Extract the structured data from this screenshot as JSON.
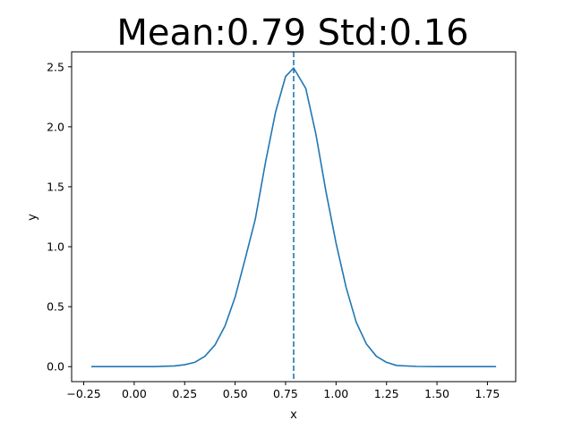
{
  "chart_data": {
    "type": "line",
    "title": "Mean:0.79 Std:0.16",
    "xlabel": "x",
    "ylabel": "y",
    "mean": 0.79,
    "std": 0.16,
    "x_range": [
      -0.21,
      1.79
    ],
    "xlim": [
      -0.31,
      1.89
    ],
    "ylim": [
      -0.125,
      2.625
    ],
    "xticks": [
      -0.25,
      0.0,
      0.25,
      0.5,
      0.75,
      1.0,
      1.25,
      1.5,
      1.75
    ],
    "xtick_labels": [
      "−0.25",
      "0.00",
      "0.25",
      "0.50",
      "0.75",
      "1.00",
      "1.25",
      "1.50",
      "1.75"
    ],
    "yticks": [
      0.0,
      0.5,
      1.0,
      1.5,
      2.0,
      2.5
    ],
    "ytick_labels": [
      "0.0",
      "0.5",
      "1.0",
      "1.5",
      "2.0",
      "2.5"
    ],
    "series": [
      {
        "x": [
          -0.21,
          -0.1,
          0.0,
          0.1,
          0.2,
          0.25,
          0.3,
          0.35,
          0.4,
          0.45,
          0.5,
          0.55,
          0.6,
          0.65,
          0.7,
          0.75,
          0.79,
          0.85,
          0.9,
          0.95,
          1.0,
          1.05,
          1.1,
          1.15,
          1.2,
          1.25,
          1.3,
          1.4,
          1.5,
          1.6,
          1.7,
          1.79
        ],
        "y": [
          0.0,
          0.0,
          0.0,
          0.0,
          0.006,
          0.016,
          0.036,
          0.086,
          0.18,
          0.34,
          0.58,
          0.9,
          1.23,
          1.7,
          2.12,
          2.42,
          2.49,
          2.32,
          1.94,
          1.46,
          1.03,
          0.66,
          0.37,
          0.19,
          0.086,
          0.036,
          0.0097,
          0.0017,
          0.0,
          0.0,
          0.0,
          0.0
        ]
      }
    ],
    "vline_x": 0.79,
    "line_color": "#1f77b4",
    "grid": false
  }
}
